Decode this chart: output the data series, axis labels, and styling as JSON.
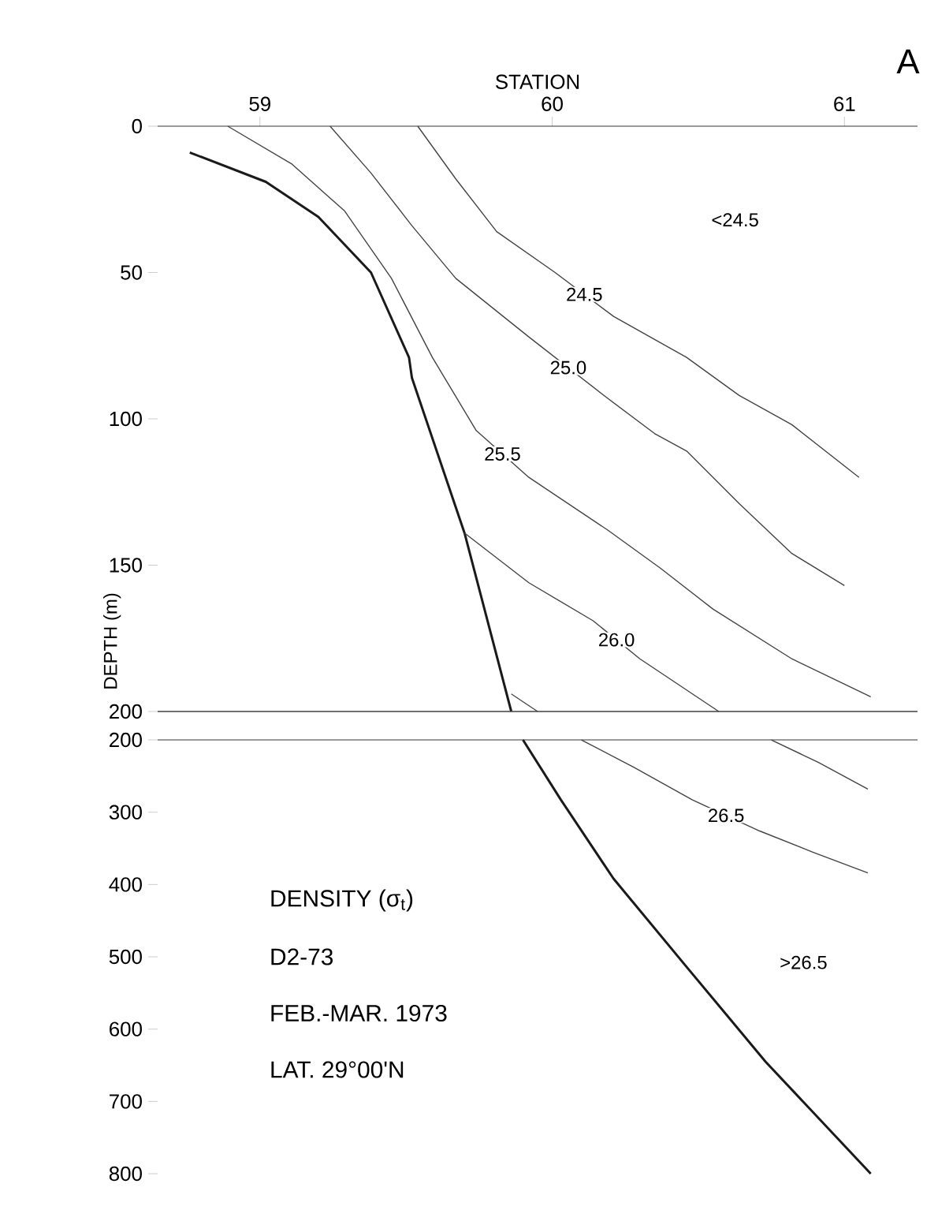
{
  "chart_data": [
    {
      "type": "line",
      "title": "A",
      "xlabel": "STATION",
      "ylabel": "DEPTH (m)",
      "xlim": [
        58.65,
        61.25
      ],
      "xticks": [
        59,
        60,
        61
      ],
      "ylim": [
        200,
        0
      ],
      "yticks": [
        0,
        50,
        100,
        150,
        200
      ],
      "marker": "none",
      "annotations": [
        "<24.5"
      ],
      "series": [
        {
          "color": "#1a1a1a",
          "x": [
            58.76,
            59.02,
            59.2,
            59.38,
            59.51,
            59.52,
            59.7,
            59.86
          ],
          "values": [
            9,
            19,
            31,
            50,
            79,
            86,
            139,
            200
          ]
        },
        {
          "name": "24.5",
          "color": "#444444",
          "x": [
            59.54,
            59.67,
            59.81,
            60.01,
            60.21,
            60.46,
            60.64,
            60.82,
            61.05
          ],
          "values": [
            0,
            18,
            36,
            50,
            65,
            79,
            92,
            102,
            120
          ]
        },
        {
          "name": "25.0",
          "color": "#444444",
          "x": [
            59.24,
            59.38,
            59.52,
            59.67,
            59.92,
            60.19,
            60.35,
            60.46,
            60.64,
            60.82,
            61.0
          ],
          "values": [
            0,
            16,
            34,
            52,
            72,
            93,
            105,
            111,
            129,
            146,
            157
          ]
        },
        {
          "name": "25.5",
          "color": "#444444",
          "x": [
            58.89,
            59.11,
            59.29,
            59.45,
            59.59,
            59.74,
            59.92,
            60.19,
            60.37,
            60.55,
            60.82,
            61.09
          ],
          "values": [
            0,
            13,
            29,
            52,
            79,
            104,
            120,
            138,
            151,
            165,
            182,
            195
          ]
        },
        {
          "name": "26.0",
          "color": "#444444",
          "x": [
            59.7,
            59.92,
            60.14,
            60.3,
            60.48,
            60.57
          ],
          "values": [
            139,
            156,
            169,
            182,
            194,
            200
          ]
        },
        {
          "color": "#444444",
          "x": [
            59.86,
            59.95
          ],
          "values": [
            194,
            200
          ]
        }
      ]
    },
    {
      "type": "line",
      "xlim": [
        58.65,
        61.25
      ],
      "ylim": [
        800,
        200
      ],
      "yticks": [
        200,
        300,
        400,
        500,
        600,
        700,
        800
      ],
      "tick_labels": "y",
      "marker": "none",
      "annotations": [
        ">26.5",
        "DENSITY (σ$_{t}$)",
        "D2-73",
        "FEB.-MAR. 1973",
        "LAT. 29°00'N"
      ],
      "series": [
        {
          "color": "#1a1a1a",
          "x": [
            59.9,
            60.03,
            60.21,
            60.46,
            60.73,
            61.09
          ],
          "values": [
            200,
            283,
            392,
            514,
            645,
            800
          ]
        },
        {
          "name": "26.5",
          "color": "#444444",
          "x": [
            60.1,
            60.28,
            60.48,
            60.71,
            60.89,
            61.08
          ],
          "values": [
            200,
            238,
            283,
            326,
            355,
            384
          ]
        },
        {
          "color": "#444444",
          "x": [
            60.75,
            60.91,
            61.08
          ],
          "values": [
            200,
            231,
            268
          ]
        }
      ]
    }
  ]
}
